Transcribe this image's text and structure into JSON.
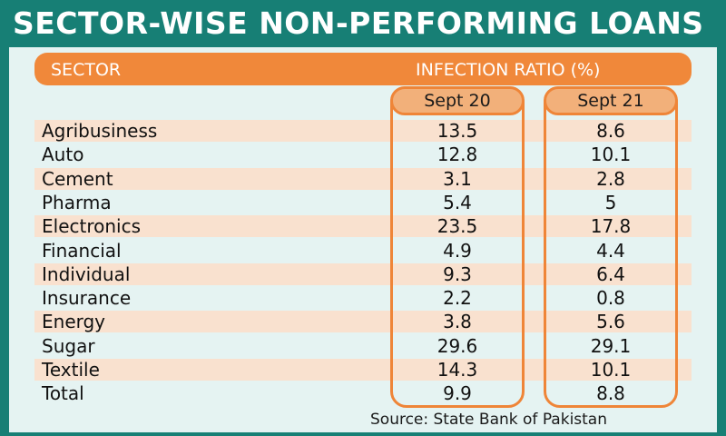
{
  "title": "SECTOR-WISE NON-PERFORMING LOANS",
  "header": {
    "sector": "SECTOR",
    "ratio": "INFECTION RATIO (%)"
  },
  "columns": [
    "Sept 20",
    "Sept 21"
  ],
  "source": "Source: State Bank of Pakistan",
  "colors": {
    "frame": "#177f75",
    "accent": "#f0883a",
    "panel": "#e5f3f2",
    "stripe": "#f9e1cf"
  },
  "chart_data": {
    "type": "table",
    "title": "SECTOR-WISE NON-PERFORMING LOANS",
    "columns": [
      "SECTOR",
      "Sept 20",
      "Sept 21"
    ],
    "rows": [
      {
        "sector": "Agribusiness",
        "sept20": "13.5",
        "sept21": "8.6"
      },
      {
        "sector": "Auto",
        "sept20": "12.8",
        "sept21": "10.1"
      },
      {
        "sector": "Cement",
        "sept20": "3.1",
        "sept21": "2.8"
      },
      {
        "sector": "Pharma",
        "sept20": "5.4",
        "sept21": "5"
      },
      {
        "sector": "Electronics",
        "sept20": "23.5",
        "sept21": "17.8"
      },
      {
        "sector": "Financial",
        "sept20": "4.9",
        "sept21": "4.4"
      },
      {
        "sector": "Individual",
        "sept20": "9.3",
        "sept21": "6.4"
      },
      {
        "sector": "Insurance",
        "sept20": "2.2",
        "sept21": "0.8"
      },
      {
        "sector": "Energy",
        "sept20": "3.8",
        "sept21": "5.6"
      },
      {
        "sector": "Sugar",
        "sept20": "29.6",
        "sept21": "29.1"
      },
      {
        "sector": "Textile",
        "sept20": "14.3",
        "sept21": "10.1"
      },
      {
        "sector": "Total",
        "sept20": "9.9",
        "sept21": "8.8"
      }
    ]
  }
}
